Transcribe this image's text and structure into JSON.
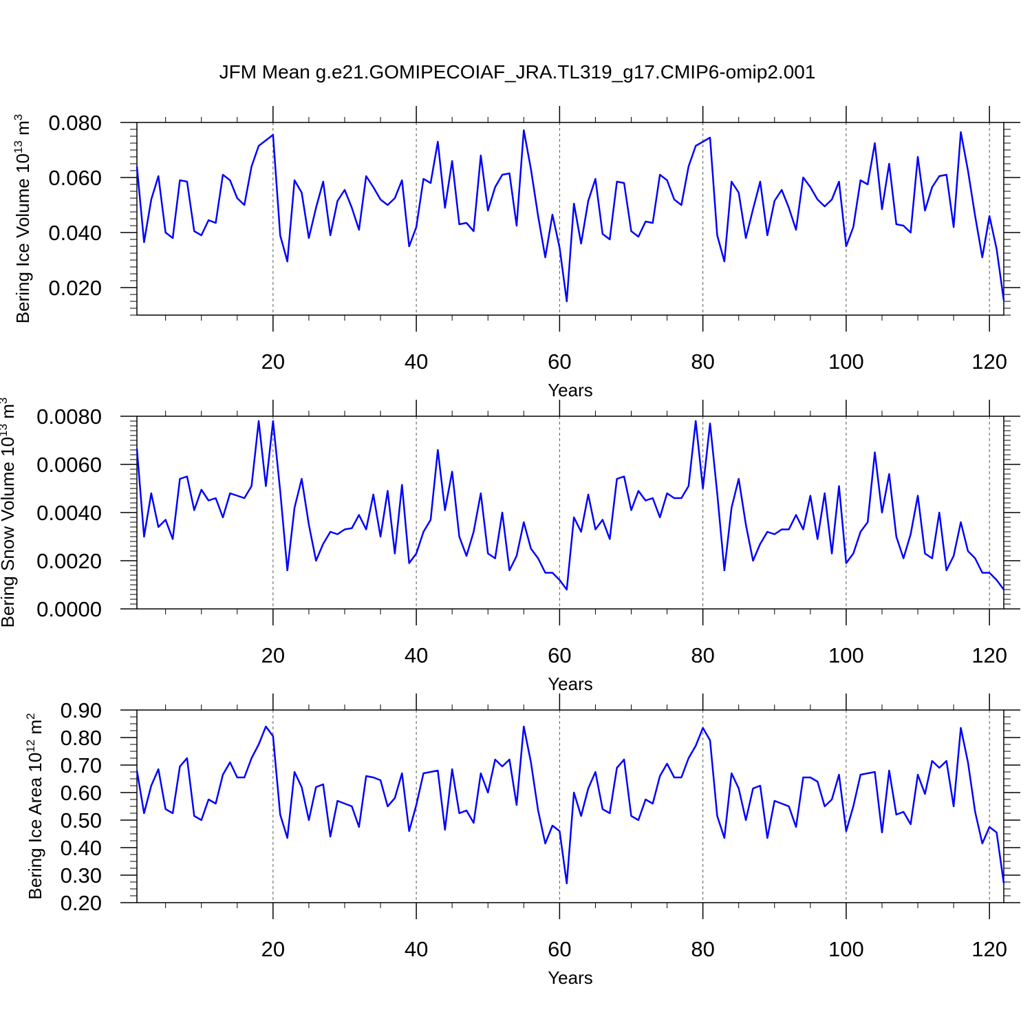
{
  "title": "JFM Mean g.e21.GOMIPECOIAF_JRA.TL319_g17.CMIP6-omip2.001",
  "colors": {
    "line": "#0000ff",
    "axis": "#000000",
    "grid": "#555555"
  },
  "chart_data": [
    {
      "type": "line",
      "name": "ice-volume",
      "ylabel": {
        "prefix": "Bering Ice Volume 10",
        "sup": "13",
        "suffix": " m",
        "sup2": "3"
      },
      "xlabel": "Years",
      "xlim": [
        1,
        122
      ],
      "ylim": [
        0.01,
        0.08
      ],
      "yticks": [
        "0.020",
        "0.040",
        "0.060",
        "0.080"
      ],
      "ytick_values": [
        0.02,
        0.04,
        0.06,
        0.08
      ],
      "xticks": [
        "20",
        "40",
        "60",
        "80",
        "100",
        "120"
      ],
      "xtick_values": [
        20,
        40,
        60,
        80,
        100,
        120
      ],
      "series": [
        {
          "name": "Bering Ice Volume",
          "values": [
            0.064,
            0.0365,
            0.052,
            0.0605,
            0.04,
            0.038,
            0.059,
            0.0585,
            0.0405,
            0.039,
            0.0445,
            0.0435,
            0.061,
            0.059,
            0.0525,
            0.05,
            0.064,
            0.0715,
            0.0735,
            0.0755,
            0.039,
            0.0295,
            0.059,
            0.0545,
            0.038,
            0.049,
            0.0585,
            0.039,
            0.0515,
            0.0555,
            0.049,
            0.041,
            0.0605,
            0.0565,
            0.052,
            0.05,
            0.0525,
            0.059,
            0.035,
            0.042,
            0.0595,
            0.058,
            0.073,
            0.049,
            0.066,
            0.043,
            0.0435,
            0.0405,
            0.068,
            0.048,
            0.0565,
            0.061,
            0.0615,
            0.0425,
            0.0772,
            0.063,
            0.046,
            0.031,
            0.0465,
            0.0345,
            0.015,
            0.0505,
            0.036,
            0.0515,
            0.0595,
            0.0395,
            0.0375,
            0.0585,
            0.058,
            0.0405,
            0.0385,
            0.044,
            0.0435,
            0.061,
            0.059,
            0.052,
            0.05,
            0.064,
            0.0715,
            0.073,
            0.0745,
            0.039,
            0.0295,
            0.0585,
            0.0545,
            0.038,
            0.0485,
            0.0585,
            0.039,
            0.0515,
            0.0555,
            0.049,
            0.041,
            0.06,
            0.0565,
            0.052,
            0.0495,
            0.052,
            0.0585,
            0.035,
            0.042,
            0.059,
            0.0575,
            0.0725,
            0.0485,
            0.065,
            0.043,
            0.0425,
            0.04,
            0.0675,
            0.048,
            0.0565,
            0.0605,
            0.061,
            0.042,
            0.0765,
            0.0625,
            0.046,
            0.031,
            0.046,
            0.034,
            0.0153
          ]
        }
      ]
    },
    {
      "type": "line",
      "name": "snow-volume",
      "ylabel": {
        "prefix": "Bering Snow Volume 10",
        "sup": "13",
        "suffix": " m",
        "sup2": "3"
      },
      "xlabel": "Years",
      "xlim": [
        1,
        122
      ],
      "ylim": [
        0.0,
        0.008
      ],
      "yticks": [
        "0.0000",
        "0.0020",
        "0.0040",
        "0.0060",
        "0.0080"
      ],
      "ytick_values": [
        0.0,
        0.002,
        0.004,
        0.006,
        0.008
      ],
      "xticks": [
        "20",
        "40",
        "60",
        "80",
        "100",
        "120"
      ],
      "xtick_values": [
        20,
        40,
        60,
        80,
        100,
        120
      ],
      "series": [
        {
          "name": "Bering Snow Volume",
          "values": [
            0.00665,
            0.003,
            0.0048,
            0.0034,
            0.0037,
            0.0029,
            0.0054,
            0.0055,
            0.0041,
            0.00495,
            0.0045,
            0.0046,
            0.0038,
            0.0048,
            0.0047,
            0.0046,
            0.0051,
            0.0078,
            0.0051,
            0.0078,
            0.0049,
            0.0016,
            0.0042,
            0.0054,
            0.0035,
            0.002,
            0.0027,
            0.0032,
            0.0031,
            0.0033,
            0.00335,
            0.0039,
            0.0033,
            0.00475,
            0.003,
            0.0049,
            0.0023,
            0.00515,
            0.0019,
            0.0023,
            0.0032,
            0.0037,
            0.0066,
            0.0041,
            0.0057,
            0.003,
            0.0022,
            0.0032,
            0.0048,
            0.0023,
            0.0021,
            0.004,
            0.0016,
            0.0022,
            0.0036,
            0.0025,
            0.0021,
            0.0015,
            0.0015,
            0.0012,
            0.0008,
            0.0038,
            0.0032,
            0.00475,
            0.0033,
            0.0037,
            0.0029,
            0.0054,
            0.0055,
            0.0041,
            0.0049,
            0.0045,
            0.0046,
            0.0038,
            0.0048,
            0.0046,
            0.0046,
            0.0051,
            0.0078,
            0.005,
            0.0077,
            0.0048,
            0.0016,
            0.0042,
            0.0054,
            0.0035,
            0.002,
            0.0027,
            0.0032,
            0.0031,
            0.0033,
            0.0033,
            0.0039,
            0.0033,
            0.0047,
            0.0029,
            0.0048,
            0.0023,
            0.0051,
            0.0019,
            0.0023,
            0.0032,
            0.0036,
            0.0065,
            0.004,
            0.0056,
            0.003,
            0.0021,
            0.0031,
            0.0047,
            0.0023,
            0.0021,
            0.004,
            0.0016,
            0.0022,
            0.0036,
            0.0024,
            0.0021,
            0.0015,
            0.0015,
            0.0012,
            0.0008
          ]
        }
      ]
    },
    {
      "type": "line",
      "name": "ice-area",
      "ylabel": {
        "prefix": "Bering Ice Area 10",
        "sup": "12",
        "suffix": " m",
        "sup2": "2"
      },
      "xlabel": "Years",
      "xlim": [
        1,
        122
      ],
      "ylim": [
        0.2,
        0.9
      ],
      "yticks": [
        "0.20",
        "0.30",
        "0.40",
        "0.50",
        "0.60",
        "0.70",
        "0.80",
        "0.90"
      ],
      "ytick_values": [
        0.2,
        0.3,
        0.4,
        0.5,
        0.6,
        0.7,
        0.8,
        0.9
      ],
      "xticks": [
        "20",
        "40",
        "60",
        "80",
        "100",
        "120"
      ],
      "xtick_values": [
        20,
        40,
        60,
        80,
        100,
        120
      ],
      "series": [
        {
          "name": "Bering Ice Area",
          "values": [
            0.68,
            0.525,
            0.625,
            0.685,
            0.54,
            0.525,
            0.695,
            0.725,
            0.515,
            0.5,
            0.575,
            0.56,
            0.665,
            0.71,
            0.655,
            0.655,
            0.725,
            0.775,
            0.84,
            0.805,
            0.52,
            0.435,
            0.675,
            0.62,
            0.5,
            0.62,
            0.63,
            0.44,
            0.57,
            0.56,
            0.55,
            0.475,
            0.66,
            0.655,
            0.645,
            0.55,
            0.58,
            0.67,
            0.46,
            0.555,
            0.67,
            0.675,
            0.68,
            0.465,
            0.685,
            0.525,
            0.535,
            0.49,
            0.67,
            0.6,
            0.72,
            0.695,
            0.72,
            0.555,
            0.84,
            0.71,
            0.535,
            0.415,
            0.48,
            0.46,
            0.27,
            0.6,
            0.515,
            0.615,
            0.675,
            0.54,
            0.525,
            0.69,
            0.72,
            0.515,
            0.5,
            0.575,
            0.56,
            0.66,
            0.705,
            0.655,
            0.655,
            0.725,
            0.77,
            0.835,
            0.79,
            0.515,
            0.435,
            0.67,
            0.615,
            0.5,
            0.615,
            0.625,
            0.435,
            0.57,
            0.56,
            0.55,
            0.475,
            0.655,
            0.655,
            0.64,
            0.55,
            0.575,
            0.665,
            0.46,
            0.55,
            0.665,
            0.67,
            0.675,
            0.455,
            0.68,
            0.52,
            0.53,
            0.485,
            0.665,
            0.595,
            0.715,
            0.69,
            0.715,
            0.55,
            0.835,
            0.71,
            0.53,
            0.415,
            0.475,
            0.455,
            0.27
          ]
        }
      ]
    }
  ]
}
